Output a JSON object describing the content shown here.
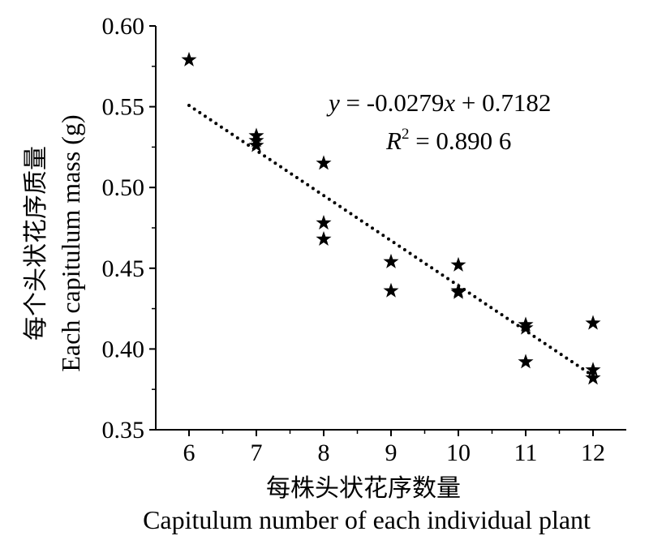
{
  "chart_data": {
    "type": "scatter",
    "xlabel_cn": "每株头状花序数量",
    "xlabel": "Capitulum number of each individual plant",
    "ylabel_cn": "每个头状花序质量",
    "ylabel": "Each capitulum mass (g)",
    "xlim": [
      5.5,
      12.5
    ],
    "ylim": [
      0.35,
      0.6
    ],
    "x_ticks": [
      "6",
      "7",
      "8",
      "9",
      "10",
      "11",
      "12"
    ],
    "y_ticks": [
      "0.35",
      "0.40",
      "0.45",
      "0.50",
      "0.55",
      "0.60"
    ],
    "grid": false,
    "points": [
      [
        6,
        0.579
      ],
      [
        7,
        0.532
      ],
      [
        7,
        0.529
      ],
      [
        7,
        0.526
      ],
      [
        8,
        0.515
      ],
      [
        8,
        0.478
      ],
      [
        8,
        0.468
      ],
      [
        9,
        0.454
      ],
      [
        9,
        0.436
      ],
      [
        10,
        0.452
      ],
      [
        10,
        0.436
      ],
      [
        10,
        0.435
      ],
      [
        11,
        0.415
      ],
      [
        11,
        0.413
      ],
      [
        11,
        0.392
      ],
      [
        12,
        0.416
      ],
      [
        12,
        0.387
      ],
      [
        12,
        0.382
      ]
    ],
    "fit": {
      "slope": -0.0279,
      "intercept": 0.7182,
      "x_range": [
        6,
        12
      ]
    },
    "equation_text": "y = -0.0279x + 0.7182",
    "r2_text": "R² = 0.890 6"
  }
}
